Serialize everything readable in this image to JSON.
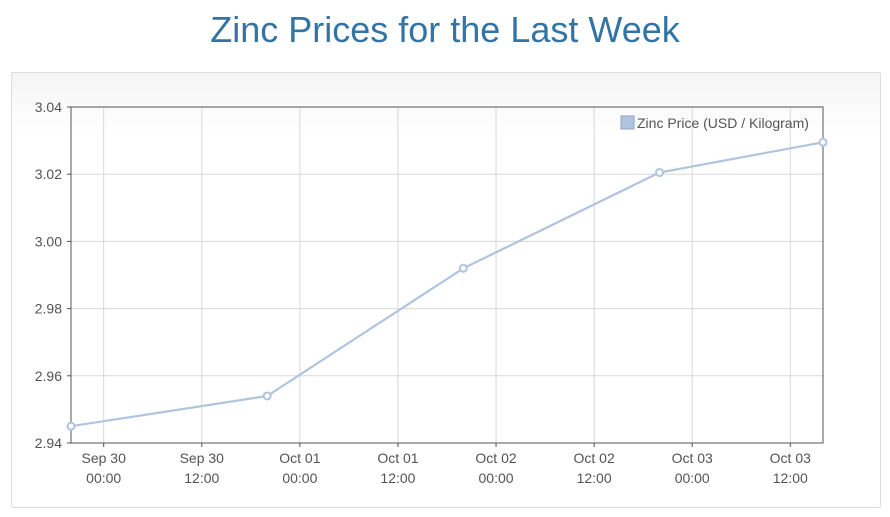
{
  "page": {
    "title": "Zinc Prices for the Last Week"
  },
  "colors": {
    "title": "#3274a6",
    "series": "#b0c4de",
    "grid": "#d8d8d8",
    "axis": "#545454"
  },
  "chart_data": {
    "type": "line",
    "title": "Zinc Prices for the Last Week",
    "xlabel": "",
    "ylabel": "",
    "ylim": [
      2.94,
      3.04
    ],
    "xlim": [
      "2025-09-29T20:00",
      "2025-10-03T16:00"
    ],
    "y_ticks": [
      "2.94",
      "2.96",
      "2.98",
      "3.00",
      "3.02",
      "3.04"
    ],
    "x_ticks": [
      {
        "at": "2025-09-30T00:00",
        "line1": "Sep 30",
        "line2": "00:00"
      },
      {
        "at": "2025-09-30T12:00",
        "line1": "Sep 30",
        "line2": "12:00"
      },
      {
        "at": "2025-10-01T00:00",
        "line1": "Oct 01",
        "line2": "00:00"
      },
      {
        "at": "2025-10-01T12:00",
        "line1": "Oct 01",
        "line2": "12:00"
      },
      {
        "at": "2025-10-02T00:00",
        "line1": "Oct 02",
        "line2": "00:00"
      },
      {
        "at": "2025-10-02T12:00",
        "line1": "Oct 02",
        "line2": "12:00"
      },
      {
        "at": "2025-10-03T00:00",
        "line1": "Oct 03",
        "line2": "00:00"
      },
      {
        "at": "2025-10-03T12:00",
        "line1": "Oct 03",
        "line2": "12:00"
      }
    ],
    "grid": true,
    "legend_position": "top-right",
    "series": [
      {
        "name": "Zinc Price (USD / Kilogram)",
        "color": "#b0c4de",
        "points": [
          {
            "x": "2025-09-29T20:00",
            "y": 2.945
          },
          {
            "x": "2025-09-30T20:00",
            "y": 2.954
          },
          {
            "x": "2025-10-01T20:00",
            "y": 2.992
          },
          {
            "x": "2025-10-02T20:00",
            "y": 3.0205
          },
          {
            "x": "2025-10-03T16:00",
            "y": 3.0295
          }
        ]
      }
    ]
  }
}
